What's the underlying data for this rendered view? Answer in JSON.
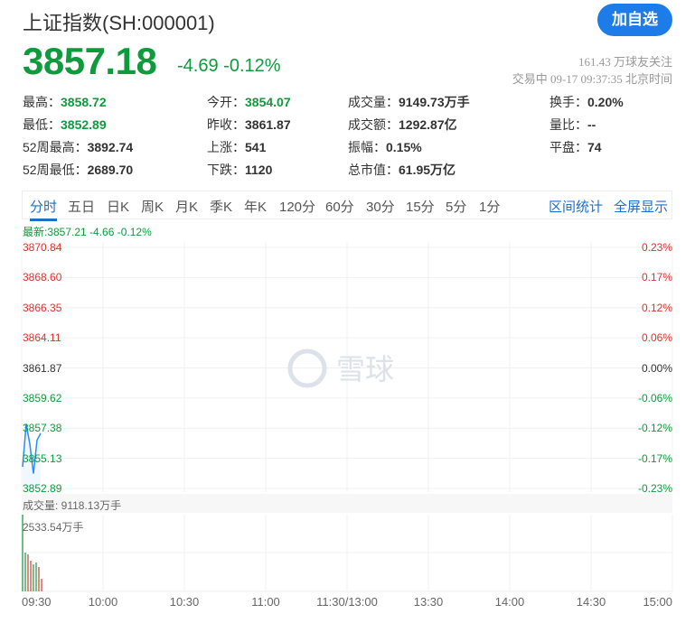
{
  "header": {
    "title": "上证指数(SH:000001)",
    "add_button": "加自选",
    "price": "3857.18",
    "change": "-4.69",
    "change_pct": "-0.12%",
    "followers": "161.43 万球友关注",
    "status": "交易中 09-17 09:37:35 北京时间"
  },
  "quote": [
    [
      {
        "label": "最高：",
        "value": "3858.72",
        "color": "green"
      },
      {
        "label": "今开：",
        "value": "3854.07",
        "color": "green"
      },
      {
        "label": "成交量：",
        "value": "9149.73万手"
      },
      {
        "label": "换手：",
        "value": "0.20%"
      }
    ],
    [
      {
        "label": "最低：",
        "value": "3852.89",
        "color": "green"
      },
      {
        "label": "昨收：",
        "value": "3861.87"
      },
      {
        "label": "成交额：",
        "value": "1292.87亿"
      },
      {
        "label": "量比：",
        "value": "--"
      }
    ],
    [
      {
        "label": "52周最高：",
        "value": "3892.74"
      },
      {
        "label": "上涨：",
        "value": "541"
      },
      {
        "label": "振幅：",
        "value": "0.15%"
      },
      {
        "label": "平盘：",
        "value": "74"
      }
    ],
    [
      {
        "label": "52周最低：",
        "value": "2689.70"
      },
      {
        "label": "下跌：",
        "value": "1120"
      },
      {
        "label": "总市值：",
        "value": "61.95万亿"
      }
    ]
  ],
  "tabs": [
    "分时",
    "五日",
    "日K",
    "周K",
    "月K",
    "季K",
    "年K",
    "120分",
    "60分",
    "30分",
    "15分",
    "5分",
    "1分"
  ],
  "active_tab": "分时",
  "right_links": [
    "区间统计",
    "全屏显示"
  ],
  "chart": {
    "latest": "最新:3857.21 -4.66 -0.12%",
    "price_ticks": [
      "3870.84",
      "3868.60",
      "3866.35",
      "3864.11",
      "3861.87",
      "3859.62",
      "3857.38",
      "3855.13",
      "3852.89"
    ],
    "pct_ticks": [
      "0.23%",
      "0.17%",
      "0.12%",
      "0.06%",
      "0.00%",
      "-0.06%",
      "-0.12%",
      "-0.17%",
      "-0.23%"
    ],
    "volume_label": "成交量: 9118.13万手",
    "volume_max": "2533.54万手",
    "time_labels": [
      "09:30",
      "10:00",
      "10:30",
      "11:00",
      "11:30/13:00",
      "13:30",
      "14:00",
      "14:30",
      "15:00"
    ],
    "watermark": "雪球",
    "prices": [
      3854.5,
      3857.7,
      3856.2,
      3854.0,
      3856.5,
      3857.0
    ],
    "volumes": [
      2533.54,
      1282,
      1222,
      1013,
      894,
      954,
      805,
      417
    ],
    "volume_colors": [
      "green",
      "green",
      "red",
      "red",
      "green",
      "green",
      "red",
      "red"
    ],
    "colors": {
      "line": "#2d8cf0",
      "up": "#e0322d",
      "down": "#0f9b3d",
      "grid": "#f0f0f0"
    }
  }
}
